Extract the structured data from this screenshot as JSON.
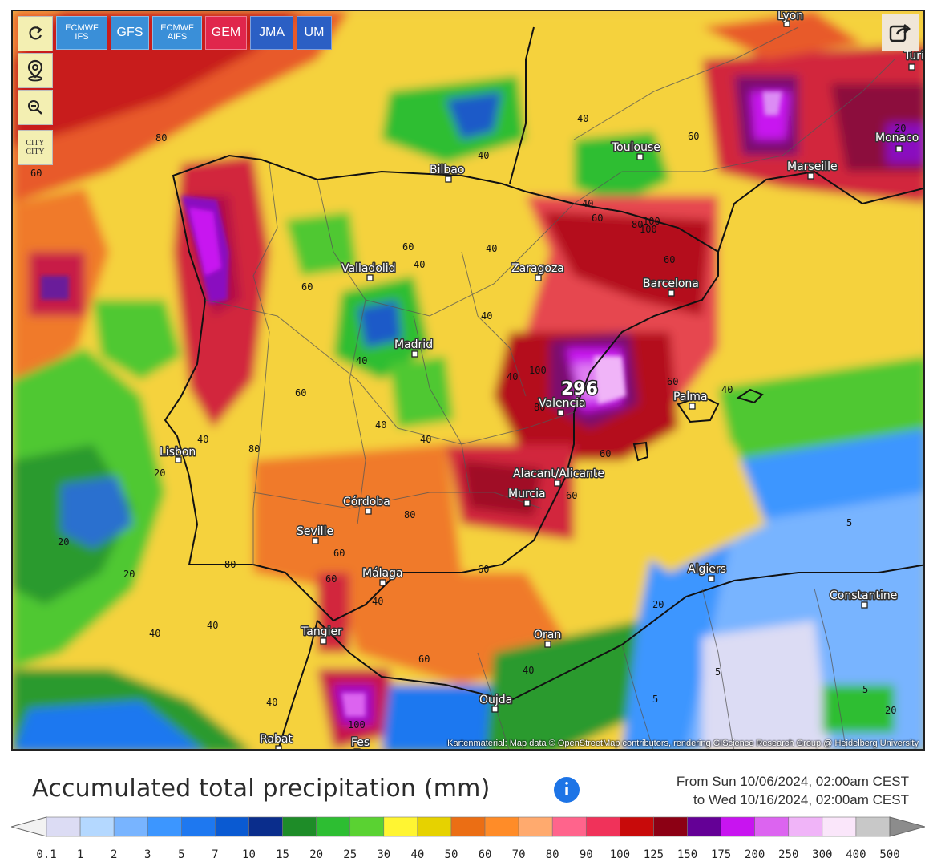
{
  "toolbar": {
    "refresh_icon": "refresh-icon",
    "location_icon": "location-pin-icon",
    "zoom_out_icon": "zoom-out-icon",
    "city_toggle_top": "CITY",
    "city_toggle_bottom": "CITY"
  },
  "models": [
    {
      "line1": "ECMWF",
      "line2": "IFS",
      "color": "#3a8fd8"
    },
    {
      "line1": "GFS",
      "line2": "",
      "color": "#3a8fd8"
    },
    {
      "line1": "ECMWF",
      "line2": "AIFS",
      "color": "#3a8fd8"
    },
    {
      "line1": "GEM",
      "line2": "",
      "color": "#e0264c"
    },
    {
      "line1": "JMA",
      "line2": "",
      "color": "#2b5fc4"
    },
    {
      "line1": "UM",
      "line2": "",
      "color": "#2b5fc4"
    }
  ],
  "share_icon": "share-icon",
  "map": {
    "cities": [
      "Lyon",
      "Turin",
      "Monaco",
      "Marseille",
      "Toulouse",
      "Bilbao",
      "Zaragoza",
      "Barcelona",
      "Valladolid",
      "Madrid",
      "Valencia",
      "Palma",
      "Lisbon",
      "Alacant/Alicante",
      "Murcia",
      "Córdoba",
      "Seville",
      "Málaga",
      "Algiers",
      "Constantine",
      "Tangier",
      "Oran",
      "Oujda",
      "Rabat",
      "Fes"
    ],
    "peak_value": "296",
    "contour_labels": [
      "80",
      "60",
      "60",
      "40",
      "40",
      "40",
      "60",
      "60",
      "20",
      "40",
      "80",
      "60",
      "40",
      "40",
      "100",
      "60",
      "60",
      "40",
      "20",
      "40",
      "80",
      "40",
      "60",
      "80",
      "100",
      "60",
      "80",
      "20",
      "40",
      "40",
      "5",
      "5",
      "5",
      "20",
      "20",
      "40",
      "40",
      "100",
      "20",
      "60",
      "40",
      "60",
      "60",
      "60",
      "40",
      "40",
      "40",
      "5",
      "100",
      "80",
      "60"
    ],
    "attribution": "Kartenmaterial: Map data © OpenStreetMap contributors, rendering GIScience Research Group @ Heidelberg University"
  },
  "footer": {
    "title": "Accumulated total precipitation (mm)",
    "info_icon": "info-icon",
    "from": "From Sun 10/06/2024, 02:00am CEST",
    "to": "to Wed 10/16/2024, 02:00am CEST"
  },
  "legend": {
    "values": [
      "0.1",
      "1",
      "2",
      "3",
      "5",
      "7",
      "10",
      "15",
      "20",
      "25",
      "30",
      "40",
      "50",
      "60",
      "70",
      "80",
      "90",
      "100",
      "125",
      "150",
      "175",
      "200",
      "250",
      "300",
      "400",
      "500"
    ],
    "colors": [
      "#dcdcf4",
      "#b4d8ff",
      "#78b4ff",
      "#3c96ff",
      "#1e78f0",
      "#0a5ad2",
      "#0a2d8c",
      "#1e8c28",
      "#2dbe32",
      "#5ad232",
      "#fff532",
      "#e6d200",
      "#eb6e14",
      "#ff8c28",
      "#ffaa6e",
      "#ff648c",
      "#f0325a",
      "#c80a0a",
      "#8c0014",
      "#640096",
      "#c814f0",
      "#dc64f0",
      "#f0b4f8",
      "#fae6fa",
      "#c8c8c8"
    ]
  }
}
